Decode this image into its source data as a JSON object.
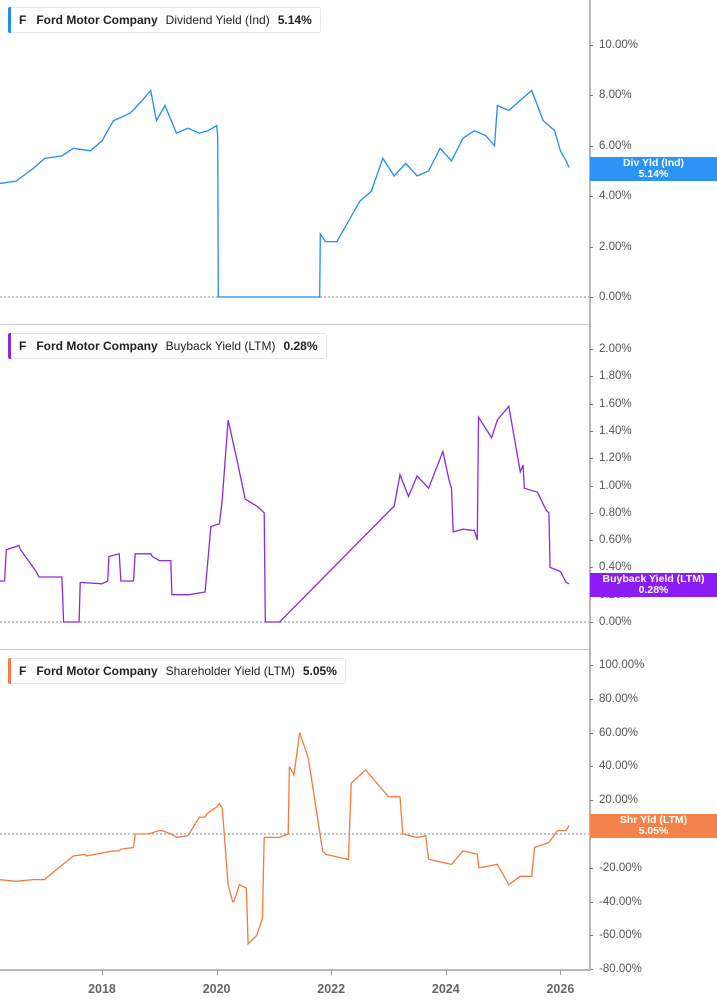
{
  "chart_data": [
    {
      "type": "line",
      "title": "F Ford Motor Company Dividend Yield (Ind) 5.14%",
      "legend": {
        "ticker": "F",
        "company": "Ford Motor Company",
        "metric": "Dividend Yield (Ind)",
        "value": "5.14%"
      },
      "color": "#1f8ef1",
      "ylabel": "",
      "xlabel": "",
      "ylim": [
        0,
        11.5
      ],
      "yticks": [
        "10.00%",
        "8.00%",
        "6.00%",
        "4.00%",
        "2.00%",
        "0.00%"
      ],
      "badge": {
        "label": "Div Yld (Ind)",
        "value": "5.14%"
      },
      "x": [
        2016.2,
        2016.5,
        2016.8,
        2017.0,
        2017.3,
        2017.5,
        2017.8,
        2018.0,
        2018.2,
        2018.5,
        2018.7,
        2018.85,
        2018.95,
        2019.1,
        2019.3,
        2019.5,
        2019.7,
        2019.85,
        2020.0,
        2020.02,
        2020.03,
        2021.8,
        2021.81,
        2021.9,
        2022.1,
        2022.3,
        2022.5,
        2022.7,
        2022.9,
        2023.1,
        2023.3,
        2023.5,
        2023.7,
        2023.9,
        2024.1,
        2024.3,
        2024.5,
        2024.7,
        2024.85,
        2024.9,
        2025.1,
        2025.3,
        2025.5,
        2025.7,
        2025.9,
        2026.0,
        2026.1,
        2026.15
      ],
      "values": [
        4.5,
        4.6,
        5.1,
        5.5,
        5.6,
        5.9,
        5.8,
        6.2,
        7.0,
        7.3,
        7.8,
        8.2,
        7.0,
        7.6,
        6.5,
        6.7,
        6.5,
        6.6,
        6.8,
        6.4,
        0.0,
        0.0,
        2.5,
        2.2,
        2.2,
        3.0,
        3.8,
        4.2,
        5.5,
        4.8,
        5.3,
        4.8,
        5.0,
        5.9,
        5.4,
        6.3,
        6.6,
        6.4,
        6.0,
        7.6,
        7.4,
        7.8,
        8.2,
        7.0,
        6.6,
        5.8,
        5.4,
        5.14
      ]
    },
    {
      "type": "line",
      "title": "F Ford Motor Company Buyback Yield (LTM) 0.28%",
      "legend": {
        "ticker": "F",
        "company": "Ford Motor Company",
        "metric": "Buyback Yield (LTM)",
        "value": "0.28%"
      },
      "color": "#8a2be2",
      "ylim": [
        0,
        2.15
      ],
      "yticks": [
        "2.00%",
        "1.80%",
        "1.60%",
        "1.40%",
        "1.20%",
        "1.00%",
        "0.80%",
        "0.60%",
        "0.40%",
        "0.20%",
        "0.00%"
      ],
      "badge": {
        "label": "Buyback Yield (LTM)",
        "value": "0.28%"
      },
      "x": [
        2016.2,
        2016.3,
        2016.33,
        2016.55,
        2016.58,
        2016.85,
        2016.9,
        2017.0,
        2017.3,
        2017.33,
        2017.36,
        2017.6,
        2017.62,
        2018.0,
        2018.1,
        2018.12,
        2018.3,
        2018.33,
        2018.55,
        2018.58,
        2018.85,
        2018.88,
        2019.0,
        2019.2,
        2019.22,
        2019.5,
        2019.52,
        2019.8,
        2019.9,
        2020.05,
        2020.1,
        2020.2,
        2020.35,
        2020.5,
        2020.7,
        2020.83,
        2020.85,
        2021.1,
        2023.1,
        2023.2,
        2023.35,
        2023.5,
        2023.7,
        2023.95,
        2024.05,
        2024.1,
        2024.13,
        2024.3,
        2024.5,
        2024.55,
        2024.57,
        2024.8,
        2024.9,
        2025.1,
        2025.3,
        2025.35,
        2025.37,
        2025.6,
        2025.75,
        2025.8,
        2025.82,
        2026.0,
        2026.1,
        2026.15
      ],
      "values": [
        0.3,
        0.3,
        0.53,
        0.56,
        0.53,
        0.37,
        0.33,
        0.33,
        0.33,
        0.0,
        0.0,
        0.0,
        0.29,
        0.28,
        0.3,
        0.48,
        0.5,
        0.3,
        0.3,
        0.5,
        0.5,
        0.48,
        0.45,
        0.45,
        0.2,
        0.2,
        0.2,
        0.22,
        0.7,
        0.72,
        0.9,
        1.48,
        1.2,
        0.9,
        0.85,
        0.8,
        0.0,
        0.0,
        0.85,
        1.08,
        0.92,
        1.07,
        0.98,
        1.25,
        1.05,
        0.98,
        0.66,
        0.68,
        0.67,
        0.6,
        1.5,
        1.35,
        1.48,
        1.58,
        1.1,
        1.15,
        0.98,
        0.95,
        0.82,
        0.8,
        0.4,
        0.37,
        0.29,
        0.28
      ]
    },
    {
      "type": "line",
      "title": "F Ford Motor Company Shareholder Yield (LTM) 5.05%",
      "legend": {
        "ticker": "F",
        "company": "Ford Motor Company",
        "metric": "Shareholder Yield (LTM)",
        "value": "5.05%"
      },
      "color": "#f47b3c",
      "ylim": [
        -80,
        105
      ],
      "yticks": [
        "100.00%",
        "80.00%",
        "60.00%",
        "40.00%",
        "20.00%",
        "0.00%",
        "-20.00%",
        "-40.00%",
        "-60.00%",
        "-80.00%"
      ],
      "badge": {
        "label": "Shr Yld (LTM)",
        "value": "5.05%"
      },
      "x": [
        2016.2,
        2016.5,
        2016.8,
        2017.0,
        2017.03,
        2017.5,
        2017.7,
        2017.72,
        2018.2,
        2018.3,
        2018.33,
        2018.55,
        2018.58,
        2018.8,
        2019.0,
        2019.05,
        2019.2,
        2019.3,
        2019.5,
        2019.52,
        2019.7,
        2019.8,
        2019.83,
        2020.0,
        2020.05,
        2020.1,
        2020.2,
        2020.28,
        2020.3,
        2020.4,
        2020.52,
        2020.55,
        2020.7,
        2020.8,
        2020.83,
        2021.1,
        2021.25,
        2021.27,
        2021.35,
        2021.45,
        2021.6,
        2021.85,
        2021.9,
        2022.3,
        2022.35,
        2022.6,
        2022.8,
        2023.0,
        2023.2,
        2023.25,
        2023.5,
        2023.65,
        2023.7,
        2024.1,
        2024.3,
        2024.55,
        2024.58,
        2024.9,
        2025.1,
        2025.3,
        2025.5,
        2025.55,
        2025.8,
        2025.95,
        2026.05,
        2026.1,
        2026.15
      ],
      "values": [
        -27,
        -28,
        -27,
        -27,
        -26,
        -13,
        -12,
        -13,
        -10,
        -10,
        -9,
        -8,
        0,
        0,
        2,
        2,
        0,
        -2,
        -1,
        0,
        10,
        10,
        12,
        16,
        18,
        15,
        -30,
        -40,
        -40,
        -30,
        -32,
        -65,
        -60,
        -50,
        -2,
        -2,
        0,
        40,
        35,
        60,
        45,
        -10,
        -12,
        -15,
        30,
        38,
        30,
        22,
        22,
        0,
        -2,
        -1,
        -15,
        -18,
        -10,
        -12,
        -20,
        -18,
        -30,
        -25,
        -25,
        -8,
        -5,
        2,
        2,
        2,
        5.05
      ]
    }
  ],
  "x_axis": {
    "ticks": [
      "2018",
      "2020",
      "2022",
      "2024",
      "2026"
    ]
  }
}
